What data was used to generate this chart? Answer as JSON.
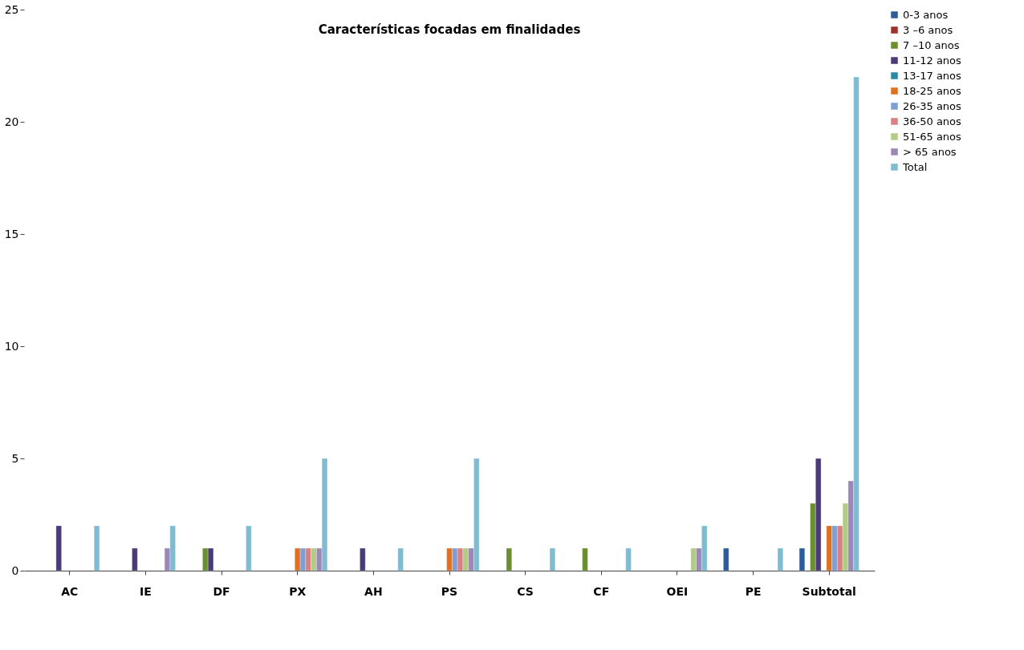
{
  "chart_data": {
    "type": "bar",
    "title": "Características focadas em finalidades",
    "categories": [
      "AC",
      "IE",
      "DF",
      "PX",
      "AH",
      "PS",
      "CS",
      "CF",
      "OEI",
      "PE",
      "Subtotal"
    ],
    "series": [
      {
        "name": "0-3 anos",
        "color": "#2e5b9a",
        "values": [
          null,
          null,
          null,
          null,
          null,
          null,
          null,
          null,
          null,
          1,
          1
        ]
      },
      {
        "name": "3 –6 anos",
        "color": "#a0302d",
        "values": [
          null,
          null,
          null,
          null,
          null,
          null,
          null,
          null,
          null,
          null,
          null
        ]
      },
      {
        "name": "7 –10 anos",
        "color": "#6a8f2e",
        "values": [
          null,
          null,
          1,
          null,
          null,
          null,
          1,
          1,
          null,
          null,
          3
        ]
      },
      {
        "name": "11-12 anos",
        "color": "#4b3a78",
        "values": [
          2,
          1,
          1,
          null,
          1,
          null,
          null,
          null,
          null,
          null,
          5
        ]
      },
      {
        "name": "13-17 anos",
        "color": "#2a8aa6",
        "values": [
          null,
          null,
          null,
          null,
          null,
          null,
          null,
          null,
          null,
          null,
          null
        ]
      },
      {
        "name": "18-25 anos",
        "color": "#e07020",
        "values": [
          null,
          null,
          null,
          1,
          null,
          1,
          null,
          null,
          null,
          null,
          2
        ]
      },
      {
        "name": "26-35 anos",
        "color": "#7f9fd4",
        "values": [
          null,
          null,
          null,
          1,
          null,
          1,
          null,
          null,
          null,
          null,
          2
        ]
      },
      {
        "name": "36-50 anos",
        "color": "#d98080",
        "values": [
          null,
          null,
          null,
          1,
          null,
          1,
          null,
          null,
          null,
          null,
          2
        ]
      },
      {
        "name": "51-65 anos",
        "color": "#b2cc85",
        "values": [
          null,
          null,
          null,
          1,
          null,
          1,
          null,
          null,
          1,
          null,
          3
        ]
      },
      {
        "name": "> 65 anos",
        "color": "#9b88b8",
        "values": [
          null,
          1,
          null,
          1,
          null,
          1,
          null,
          null,
          1,
          null,
          4
        ]
      },
      {
        "name": "Total",
        "color": "#7fbcd1",
        "values": [
          2,
          2,
          2,
          5,
          1,
          5,
          1,
          1,
          2,
          1,
          22
        ]
      }
    ],
    "ylim": [
      0,
      25
    ],
    "yticks": [
      0,
      5,
      10,
      15,
      20,
      25
    ],
    "grid": false,
    "legend": "right"
  }
}
